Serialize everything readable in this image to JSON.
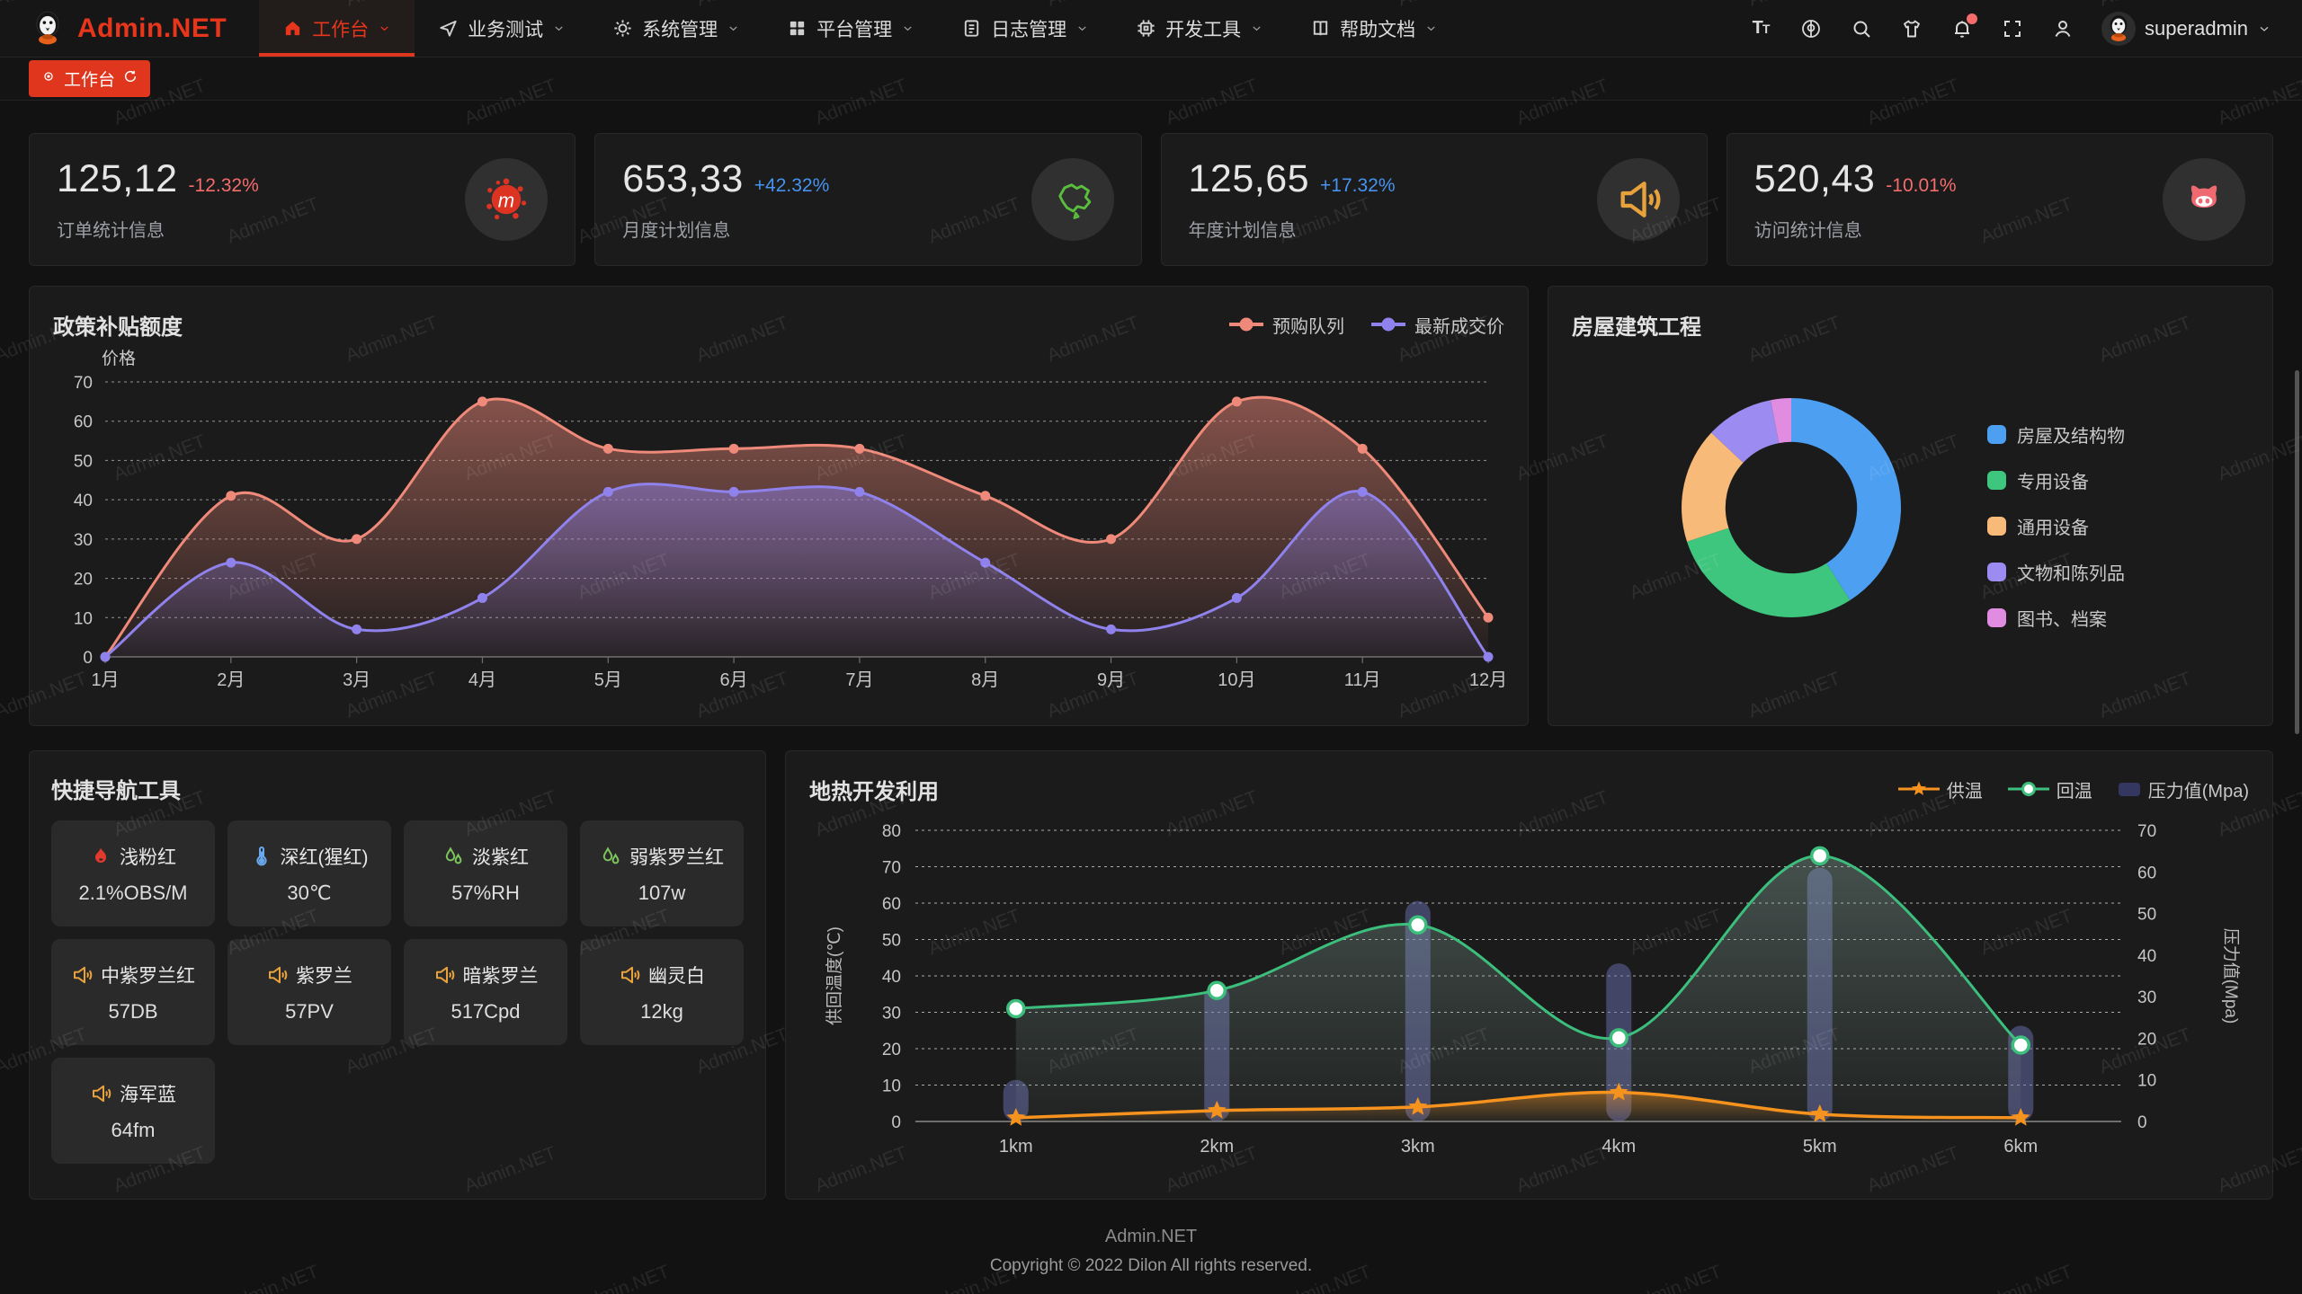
{
  "navbar": {
    "brand": "Admin.NET",
    "brand_color": "#e8361c",
    "menus": [
      {
        "icon": "home-icon",
        "label": "工作台",
        "active": true
      },
      {
        "icon": "send-icon",
        "label": "业务测试",
        "active": false
      },
      {
        "icon": "gear-icon",
        "label": "系统管理",
        "active": false
      },
      {
        "icon": "grid-icon",
        "label": "平台管理",
        "active": false
      },
      {
        "icon": "document-icon",
        "label": "日志管理",
        "active": false
      },
      {
        "icon": "cpu-icon",
        "label": "开发工具",
        "active": false
      },
      {
        "icon": "book-icon",
        "label": "帮助文档",
        "active": false
      }
    ],
    "tools": [
      {
        "icon": "font-size-icon"
      },
      {
        "icon": "translate-icon"
      },
      {
        "icon": "search-icon"
      },
      {
        "icon": "theme-icon"
      },
      {
        "icon": "bell-icon",
        "badge": true
      },
      {
        "icon": "fullscreen-icon"
      },
      {
        "icon": "user-icon"
      }
    ],
    "user": {
      "name": "superadmin"
    }
  },
  "tabbar": {
    "tabs": [
      {
        "label": "工作台",
        "active": true
      }
    ]
  },
  "stats": [
    {
      "value": "125,12",
      "delta": "-12.32%",
      "delta_color": "#f56c6c",
      "label": "订单统计信息",
      "icon": "splat-icon",
      "icon_color": "#dd3322"
    },
    {
      "value": "653,33",
      "delta": "+42.32%",
      "delta_color": "#4793f0",
      "label": "月度计划信息",
      "icon": "china-map-icon",
      "icon_color": "#5abf3c"
    },
    {
      "value": "125,65",
      "delta": "+17.32%",
      "delta_color": "#4793f0",
      "label": "年度计划信息",
      "icon": "speaker-icon",
      "icon_color": "#e8a23c"
    },
    {
      "value": "520,43",
      "delta": "-10.01%",
      "delta_color": "#f56c6c",
      "label": "访问统计信息",
      "icon": "cat-icon",
      "icon_color": "#ee6a70"
    }
  ],
  "quick_nav": {
    "title": "快捷导航工具",
    "items": [
      {
        "icon": "fire-icon",
        "icon_color": "#e23b2e",
        "name": "浅粉红",
        "value": "2.1%OBS/M"
      },
      {
        "icon": "thermometer-icon",
        "icon_color": "#6aa8ee",
        "name": "深红(猩红)",
        "value": "30℃"
      },
      {
        "icon": "humidity-icon",
        "icon_color": "#7cc45c",
        "name": "淡紫红",
        "value": "57%RH"
      },
      {
        "icon": "humidity-icon",
        "icon_color": "#7cc45c",
        "name": "弱紫罗兰红",
        "value": "107w"
      },
      {
        "icon": "speaker-icon",
        "icon_color": "#e8a23c",
        "name": "中紫罗兰红",
        "value": "57DB"
      },
      {
        "icon": "speaker-icon",
        "icon_color": "#e8a23c",
        "name": "紫罗兰",
        "value": "57PV"
      },
      {
        "icon": "speaker-icon",
        "icon_color": "#e8a23c",
        "name": "暗紫罗兰",
        "value": "517Cpd"
      },
      {
        "icon": "speaker-icon",
        "icon_color": "#e8a23c",
        "name": "幽灵白",
        "value": "12kg"
      },
      {
        "icon": "speaker-icon",
        "icon_color": "#e8a23c",
        "name": "海军蓝",
        "value": "64fm"
      }
    ]
  },
  "chart_data": [
    {
      "type": "line",
      "title": "政策补贴额度",
      "ylabel": "价格",
      "ylim": [
        0,
        70
      ],
      "y_ticks": [
        0,
        10,
        20,
        30,
        40,
        50,
        60,
        70
      ],
      "grid": "dashed-horizontal",
      "legend_position": "top-right",
      "categories": [
        "1月",
        "2月",
        "3月",
        "4月",
        "5月",
        "6月",
        "7月",
        "8月",
        "9月",
        "10月",
        "11月",
        "12月"
      ],
      "series": [
        {
          "name": "预购队列",
          "color": "#ef8a7a",
          "smooth": true,
          "area": true,
          "values": [
            0,
            41,
            30,
            65,
            53,
            53,
            53,
            41,
            30,
            65,
            53,
            10
          ]
        },
        {
          "name": "最新成交价",
          "color": "#8f82ec",
          "smooth": true,
          "area": true,
          "values": [
            0,
            24,
            7,
            15,
            42,
            42,
            42,
            24,
            7,
            15,
            42,
            0
          ]
        }
      ]
    },
    {
      "type": "pie",
      "title": "房屋建筑工程",
      "labels": [
        "房屋及结构物",
        "专用设备",
        "通用设备",
        "文物和陈列品",
        "图书、档案"
      ],
      "values": [
        41,
        29,
        17,
        10,
        3
      ],
      "colors": [
        "#4d9ff2",
        "#3fc67e",
        "#f7ba79",
        "#9c8bf0",
        "#e08ce0"
      ],
      "inner_radius_ratio": 0.6,
      "legend_position": "right"
    },
    {
      "type": "mixed",
      "title": "地热开发利用",
      "categories": [
        "1km",
        "2km",
        "3km",
        "4km",
        "5km",
        "6km"
      ],
      "y_left": {
        "label": "供回温度(℃)",
        "range": [
          0,
          80
        ],
        "ticks": [
          0,
          10,
          20,
          30,
          40,
          50,
          60,
          70,
          80
        ]
      },
      "y_right": {
        "label": "压力值(Mpa)",
        "range": [
          0,
          70
        ],
        "ticks": [
          0,
          10,
          20,
          30,
          40,
          50,
          60,
          70
        ]
      },
      "legend_position": "top-right",
      "series": [
        {
          "name": "供温",
          "type": "line",
          "axis": "left",
          "color": "#f6921e",
          "marker": "star",
          "area": true,
          "values": [
            1,
            3,
            4,
            8,
            2,
            1
          ]
        },
        {
          "name": "回温",
          "type": "line",
          "axis": "left",
          "color": "#3cbf7c",
          "marker": "circle",
          "area": true,
          "values": [
            31,
            36,
            54,
            23,
            73,
            21
          ]
        },
        {
          "name": "压力值(Mpa)",
          "type": "bar",
          "axis": "right",
          "color": "#6c70b2",
          "values": [
            10,
            33,
            53,
            38,
            61,
            23
          ]
        }
      ]
    }
  ],
  "footer": {
    "line1": "Admin.NET",
    "line2": "Copyright © 2022 Dilon All rights reserved."
  },
  "watermark": {
    "text": "Admin.NET"
  }
}
